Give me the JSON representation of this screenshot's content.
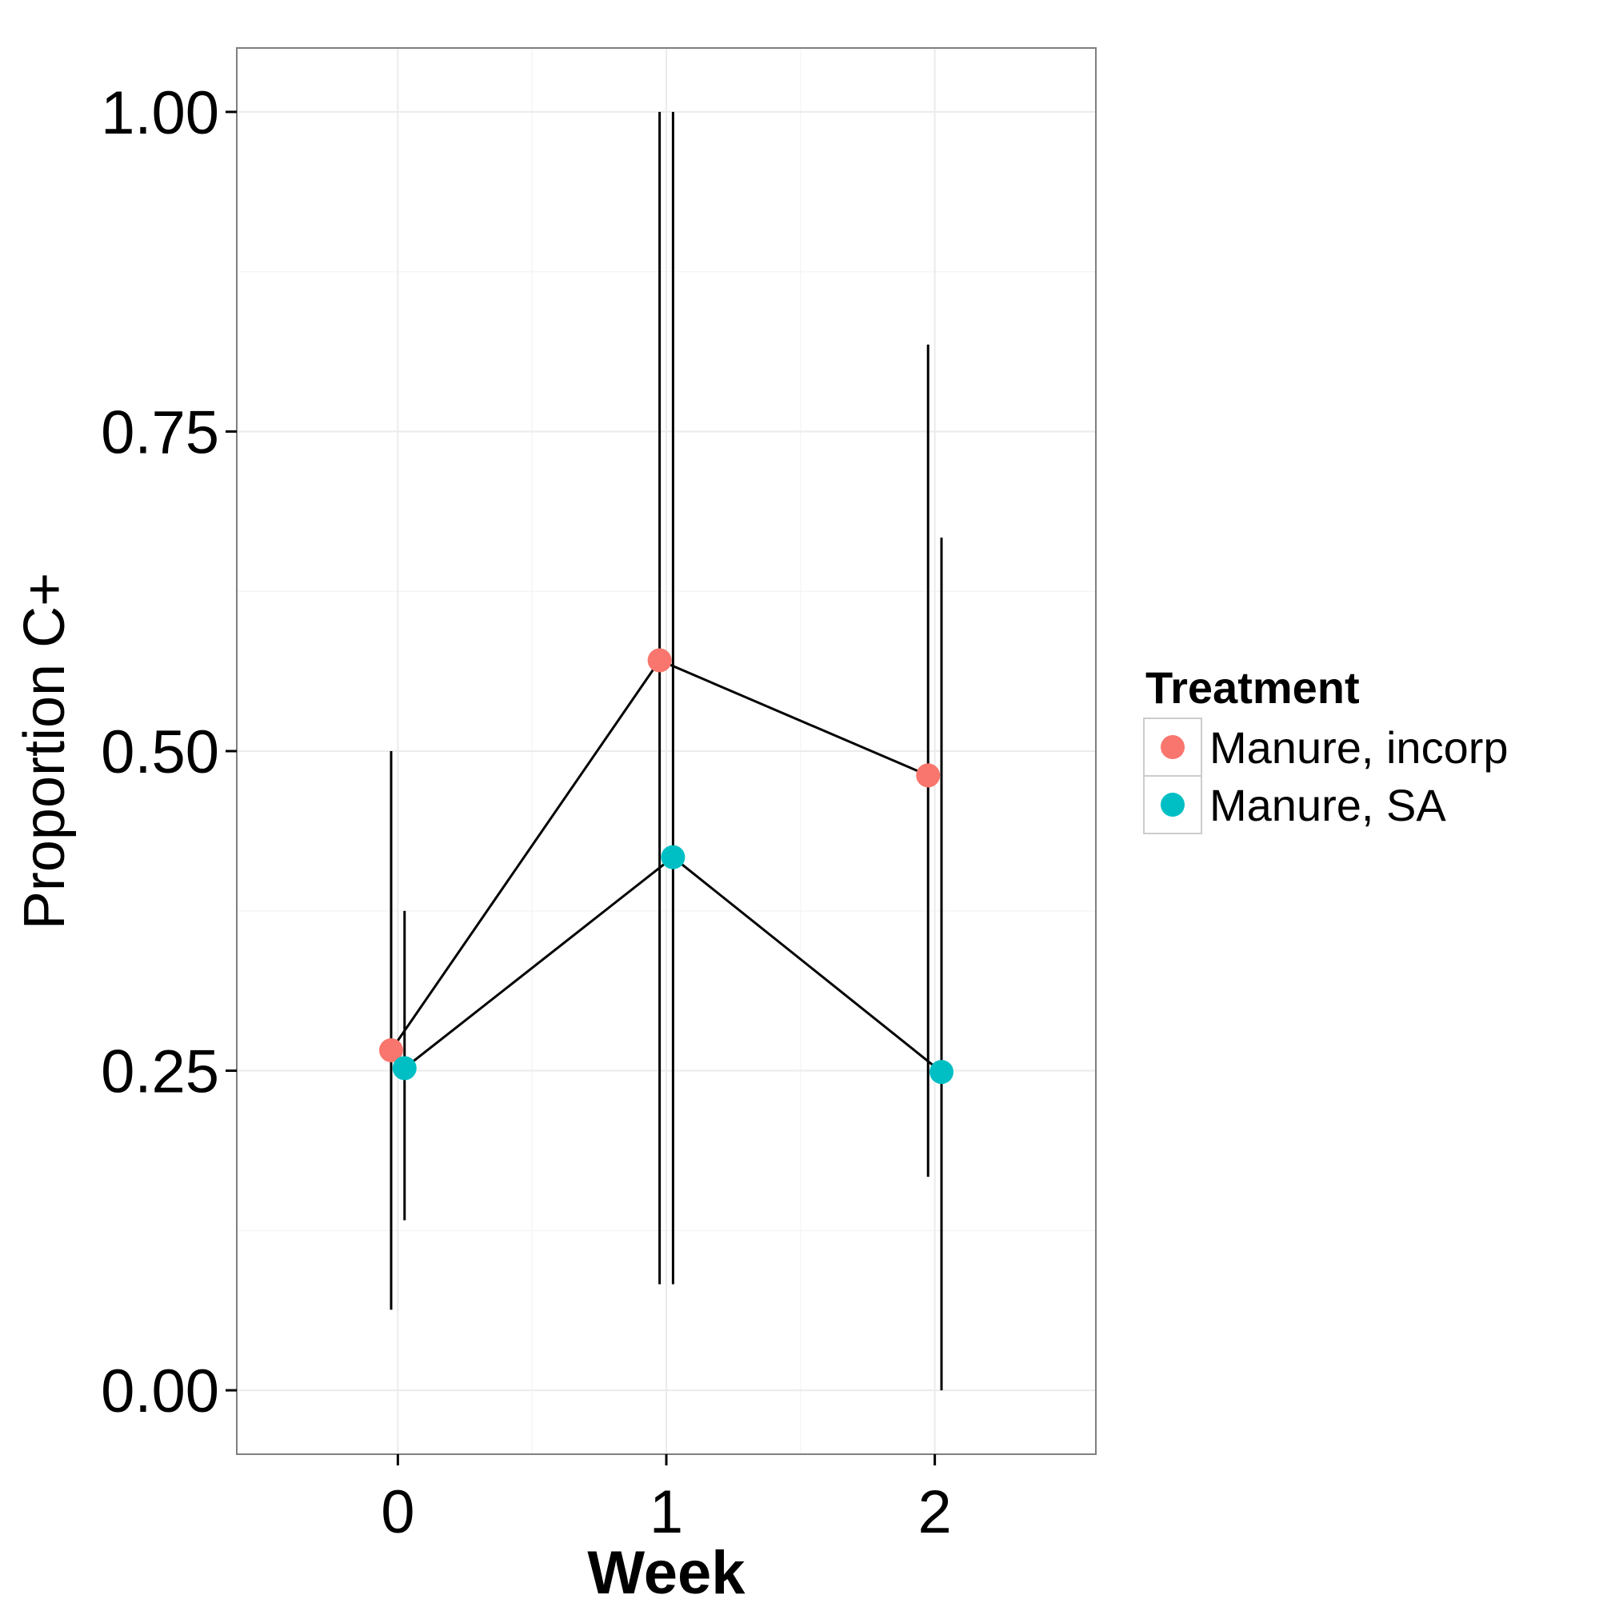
{
  "chart_data": {
    "type": "line",
    "title": "",
    "xlabel": "Week",
    "ylabel": "Proportion C+",
    "x": [
      0,
      1,
      2
    ],
    "x_tick_labels": [
      "0",
      "1",
      "2"
    ],
    "y_ticks": [
      0.0,
      0.25,
      0.5,
      0.75,
      1.0
    ],
    "y_tick_labels": [
      "0.00",
      "0.25",
      "0.50",
      "0.75",
      "1.00"
    ],
    "xlim": [
      -0.6,
      2.6
    ],
    "ylim": [
      -0.05,
      1.05
    ],
    "grid": true,
    "legend": {
      "title": "Treatment",
      "position": "right"
    },
    "series": [
      {
        "name": "Manure, incorp",
        "color": "#F8766D",
        "dodge": -0.025,
        "values": [
          0.266,
          0.571,
          0.481
        ],
        "lower": [
          0.063,
          0.083,
          0.167
        ],
        "upper": [
          0.5,
          1.0,
          0.818
        ]
      },
      {
        "name": "Manure, SA",
        "color": "#00BFC4",
        "dodge": 0.025,
        "values": [
          0.252,
          0.417,
          0.249
        ],
        "lower": [
          0.133,
          0.083,
          0.0
        ],
        "upper": [
          0.375,
          1.0,
          0.667
        ]
      }
    ]
  }
}
